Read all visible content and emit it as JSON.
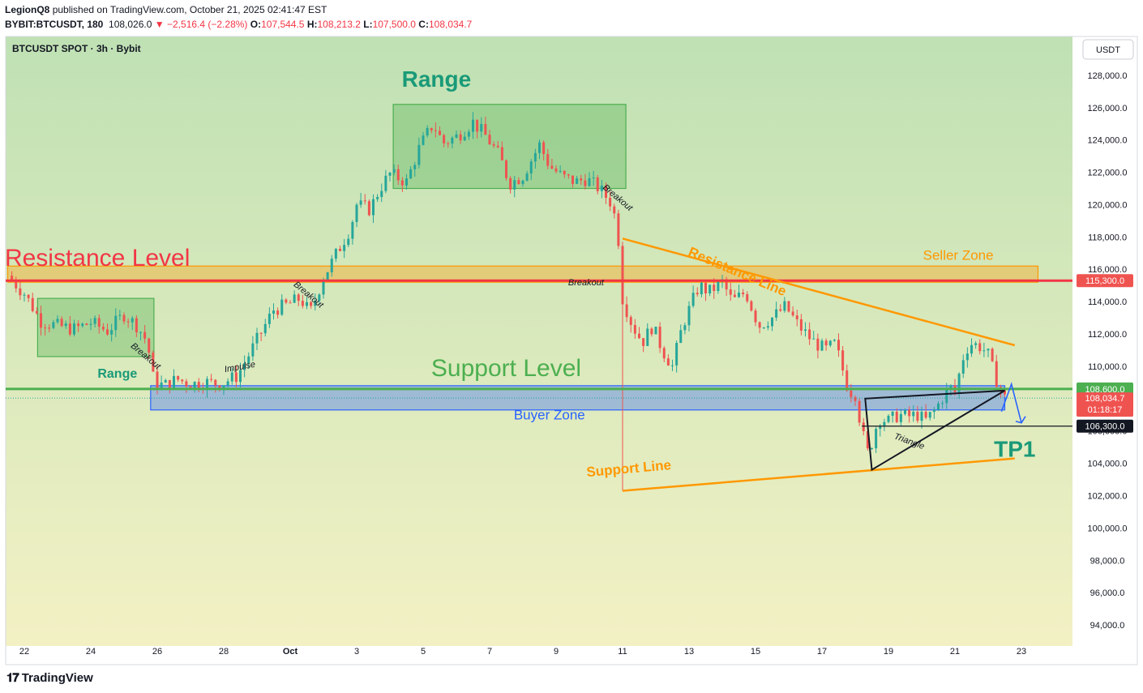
{
  "header": {
    "author": "LegionQ8",
    "published": "published on TradingView.com, October 21, 2025 02:41:47 EST",
    "symbol": "BYBIT:BTCUSDT, 180",
    "last": "108,026.0",
    "change": "−2,516.4 (−2.28%)",
    "o_label": "O:",
    "o": "107,544.5",
    "h_label": "H:",
    "h": "108,213.2",
    "l_label": "L:",
    "l": "107,500.0",
    "c_label": "C:",
    "c": "108,034.7"
  },
  "footer": {
    "brand": "TradingView"
  },
  "colors": {
    "bg_top": "#bfe1b4",
    "bg_bottom": "#f3f1c4",
    "up": "#26a69a",
    "down": "#ef5350",
    "resistance": "#f23645",
    "support": "#4caf50",
    "orange": "#ff9800",
    "blue": "#2962ff",
    "teal": "#1a9a78"
  },
  "chart_data": {
    "type": "candlestick",
    "title": "BTCUSDT SPOT · 3h · Bybit",
    "currency": "USDT",
    "ylim": [
      92700,
      130400
    ],
    "y_ticks": [
      94000,
      96000,
      98000,
      100000,
      102000,
      104000,
      106000,
      108000,
      110000,
      112000,
      114000,
      116000,
      118000,
      120000,
      122000,
      124000,
      126000,
      128000
    ],
    "x_ticks": [
      {
        "label": "22",
        "day": 22
      },
      {
        "label": "24",
        "day": 24
      },
      {
        "label": "26",
        "day": 26
      },
      {
        "label": "28",
        "day": 28
      },
      {
        "label": "Oct",
        "day": 30
      },
      {
        "label": "3",
        "day": 32
      },
      {
        "label": "5",
        "day": 34
      },
      {
        "label": "7",
        "day": 36
      },
      {
        "label": "9",
        "day": 38
      },
      {
        "label": "11",
        "day": 40
      },
      {
        "label": "13",
        "day": 42
      },
      {
        "label": "15",
        "day": 44
      },
      {
        "label": "17",
        "day": 46
      },
      {
        "label": "19",
        "day": 48
      },
      {
        "label": "21",
        "day": 50
      },
      {
        "label": "23",
        "day": 52
      }
    ],
    "price_path": [
      [
        21.5,
        115600
      ],
      [
        22.0,
        114500
      ],
      [
        22.5,
        112800
      ],
      [
        23.0,
        112500
      ],
      [
        23.5,
        112300
      ],
      [
        24.0,
        112700
      ],
      [
        24.5,
        112200
      ],
      [
        25.0,
        113200
      ],
      [
        25.4,
        112500
      ],
      [
        25.7,
        111500
      ],
      [
        25.9,
        109000
      ],
      [
        26.2,
        108800
      ],
      [
        26.6,
        109200
      ],
      [
        27.0,
        108900
      ],
      [
        27.5,
        109000
      ],
      [
        27.9,
        108900
      ],
      [
        28.4,
        109400
      ],
      [
        28.7,
        110500
      ],
      [
        29.1,
        112000
      ],
      [
        29.5,
        113500
      ],
      [
        29.9,
        113800
      ],
      [
        30.3,
        114200
      ],
      [
        30.6,
        113300
      ],
      [
        31.0,
        115500
      ],
      [
        31.4,
        117000
      ],
      [
        31.8,
        118500
      ],
      [
        32.0,
        120000
      ],
      [
        32.4,
        119700
      ],
      [
        32.7,
        121000
      ],
      [
        33.0,
        121900
      ],
      [
        33.5,
        121400
      ],
      [
        33.9,
        123600
      ],
      [
        34.3,
        125000
      ],
      [
        34.6,
        123800
      ],
      [
        35.0,
        124200
      ],
      [
        35.5,
        125100
      ],
      [
        35.9,
        124200
      ],
      [
        36.3,
        123000
      ],
      [
        36.6,
        121300
      ],
      [
        37.0,
        121800
      ],
      [
        37.5,
        123700
      ],
      [
        37.8,
        122400
      ],
      [
        38.2,
        121700
      ],
      [
        38.6,
        121400
      ],
      [
        38.9,
        121600
      ],
      [
        39.3,
        121000
      ],
      [
        39.7,
        120000
      ],
      [
        39.9,
        117500
      ],
      [
        40.0,
        114200
      ],
      [
        40.3,
        112500
      ],
      [
        40.6,
        111500
      ],
      [
        40.9,
        112500
      ],
      [
        41.2,
        111000
      ],
      [
        41.5,
        110000
      ],
      [
        41.8,
        112500
      ],
      [
        42.0,
        113500
      ],
      [
        42.3,
        115000
      ],
      [
        42.6,
        114600
      ],
      [
        43.0,
        115200
      ],
      [
        43.3,
        114000
      ],
      [
        43.7,
        114600
      ],
      [
        44.1,
        112500
      ],
      [
        44.5,
        113000
      ],
      [
        44.9,
        113700
      ],
      [
        45.3,
        112500
      ],
      [
        45.7,
        111600
      ],
      [
        46.1,
        111000
      ],
      [
        46.4,
        111400
      ],
      [
        46.8,
        108500
      ],
      [
        47.0,
        108300
      ],
      [
        47.2,
        106000
      ],
      [
        47.4,
        104500
      ],
      [
        47.7,
        106800
      ],
      [
        48.0,
        106600
      ],
      [
        48.3,
        107000
      ],
      [
        48.6,
        106900
      ],
      [
        48.9,
        107000
      ],
      [
        49.1,
        106600
      ],
      [
        49.4,
        107300
      ],
      [
        49.7,
        108300
      ],
      [
        49.9,
        108700
      ],
      [
        50.0,
        108400
      ],
      [
        50.3,
        111000
      ],
      [
        50.5,
        111400
      ],
      [
        50.8,
        111200
      ],
      [
        51.0,
        110700
      ],
      [
        51.2,
        109400
      ],
      [
        51.4,
        108400
      ],
      [
        51.5,
        108034
      ]
    ],
    "price_labels": [
      {
        "label": "USDT",
        "kind": "currency"
      },
      {
        "value": 115300,
        "label": "115,300.0",
        "style": "red"
      },
      {
        "value": 108600,
        "label": "108,600.0",
        "style": "green"
      },
      {
        "value": 108034.7,
        "label": "108,034.7",
        "sub": "01:18:17",
        "style": "red"
      },
      {
        "value": 106300,
        "label": "106,300.0",
        "style": "dark"
      }
    ],
    "levels": [
      {
        "name": "Resistance Level",
        "price": 115300,
        "color": "#f23645"
      },
      {
        "name": "Support Level",
        "price": 108600,
        "color": "#4caf50"
      },
      {
        "name": "TP1",
        "price": 106300,
        "color": "#131722"
      }
    ],
    "zones": [
      {
        "name": "Seller Zone",
        "x0": 21.5,
        "x1": 52.5,
        "y0": 115200,
        "y1": 116200,
        "color": "#ff9800"
      },
      {
        "name": "Buyer Zone",
        "x0": 25.8,
        "x1": 51.5,
        "y0": 107300,
        "y1": 108800,
        "color": "#2962ff"
      },
      {
        "name": "Range",
        "x0": 22.4,
        "x1": 25.9,
        "y0": 110600,
        "y1": 114200,
        "color": "#4caf50"
      },
      {
        "name": "Range",
        "x0": 33.1,
        "x1": 40.1,
        "y0": 121000,
        "y1": 126200,
        "color": "#4caf50"
      }
    ],
    "trendlines": [
      {
        "name": "Resistance Line",
        "points": [
          [
            40.0,
            117900
          ],
          [
            51.8,
            111300
          ]
        ],
        "color": "#ff9800"
      },
      {
        "name": "Support Line",
        "points": [
          [
            40.0,
            102300
          ],
          [
            51.8,
            104300
          ]
        ],
        "color": "#ff9800"
      }
    ],
    "triangle": {
      "name": "Triangle",
      "points": [
        [
          47.5,
          103600
        ],
        [
          51.5,
          108500
        ],
        [
          47.3,
          108000
        ]
      ]
    },
    "annotations": [
      {
        "text": "Range",
        "day": 34.4,
        "price": 127300,
        "kind": "big-teal"
      },
      {
        "text": "Resistance Level",
        "day": 24.2,
        "price": 116200,
        "kind": "big-red"
      },
      {
        "text": "Seller Zone",
        "day": 50.1,
        "price": 116600,
        "kind": "orange"
      },
      {
        "text": "Support Level",
        "day": 36.5,
        "price": 109400,
        "kind": "big-green"
      },
      {
        "text": "Buyer Zone",
        "day": 37.8,
        "price": 106700,
        "kind": "blue"
      },
      {
        "text": "Range",
        "day": 24.8,
        "price": 109300,
        "kind": "teal"
      },
      {
        "text": "TP1",
        "day": 51.8,
        "price": 104400,
        "kind": "big-teal"
      },
      {
        "text": "Breakout",
        "day": 25.6,
        "price": 110500,
        "kind": "small",
        "angle": 40
      },
      {
        "text": "Breakout",
        "day": 30.5,
        "price": 114300,
        "kind": "small",
        "angle": 40
      },
      {
        "text": "Breakout",
        "day": 39.8,
        "price": 120300,
        "kind": "small",
        "angle": 40
      },
      {
        "text": "Breakout",
        "day": 38.9,
        "price": 115000,
        "kind": "small",
        "angle": 0
      },
      {
        "text": "Impulse",
        "day": 28.5,
        "price": 109800,
        "kind": "small",
        "angle": -10
      },
      {
        "text": "Resistance Line",
        "day": 43.4,
        "price": 115600,
        "kind": "orange-rot",
        "angle": 23
      },
      {
        "text": "Support Line",
        "day": 40.2,
        "price": 103400,
        "kind": "orange-rot",
        "angle": -5
      },
      {
        "text": "Triangle",
        "day": 48.6,
        "price": 105200,
        "kind": "small",
        "angle": 20
      }
    ]
  }
}
